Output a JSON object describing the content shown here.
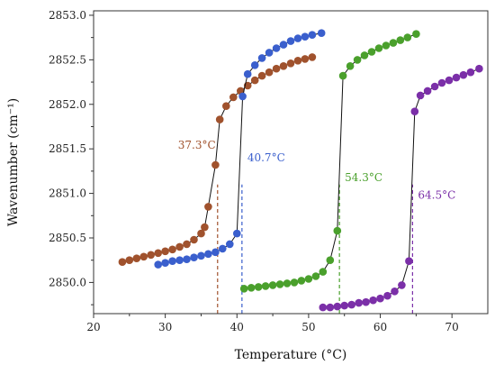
{
  "chart_data": {
    "type": "scatter",
    "xlabel": "Temperature (°C)",
    "ylabel": "Wavenumber (cm⁻¹)",
    "xlim": [
      20,
      75
    ],
    "ylim": [
      2849.65,
      2853.05
    ],
    "xticks": [
      20,
      30,
      40,
      50,
      60,
      70
    ],
    "yticks": [
      2850.0,
      2850.5,
      2851.0,
      2851.5,
      2852.0,
      2852.5,
      2853.0
    ],
    "grid": false,
    "legend": "none",
    "series": [
      {
        "color": "#a0522d",
        "points": [
          [
            24.0,
            2850.23
          ],
          [
            25.0,
            2850.25
          ],
          [
            26.0,
            2850.27
          ],
          [
            27.0,
            2850.29
          ],
          [
            28.0,
            2850.31
          ],
          [
            29.0,
            2850.33
          ],
          [
            30.0,
            2850.35
          ],
          [
            31.0,
            2850.37
          ],
          [
            32.0,
            2850.4
          ],
          [
            33.0,
            2850.43
          ],
          [
            34.0,
            2850.48
          ],
          [
            35.0,
            2850.55
          ],
          [
            35.5,
            2850.62
          ],
          [
            36.0,
            2850.85
          ],
          [
            37.0,
            2851.32
          ],
          [
            37.6,
            2851.83
          ],
          [
            38.5,
            2851.98
          ],
          [
            39.5,
            2852.08
          ],
          [
            40.5,
            2852.15
          ],
          [
            41.5,
            2852.21
          ],
          [
            42.5,
            2852.27
          ],
          [
            43.5,
            2852.32
          ],
          [
            44.5,
            2852.36
          ],
          [
            45.5,
            2852.4
          ],
          [
            46.5,
            2852.43
          ],
          [
            47.5,
            2852.46
          ],
          [
            48.5,
            2852.49
          ],
          [
            49.5,
            2852.51
          ],
          [
            50.5,
            2852.53
          ]
        ],
        "transition": {
          "x": 37.3,
          "label": "37.3°C"
        }
      },
      {
        "color": "#3a5fcd",
        "points": [
          [
            29.0,
            2850.2
          ],
          [
            30.0,
            2850.22
          ],
          [
            31.0,
            2850.24
          ],
          [
            32.0,
            2850.25
          ],
          [
            33.0,
            2850.26
          ],
          [
            34.0,
            2850.28
          ],
          [
            35.0,
            2850.3
          ],
          [
            36.0,
            2850.32
          ],
          [
            37.0,
            2850.34
          ],
          [
            38.0,
            2850.38
          ],
          [
            39.0,
            2850.43
          ],
          [
            40.0,
            2850.55
          ],
          [
            40.8,
            2852.09
          ],
          [
            41.5,
            2852.34
          ],
          [
            42.5,
            2852.44
          ],
          [
            43.5,
            2852.52
          ],
          [
            44.5,
            2852.58
          ],
          [
            45.5,
            2852.63
          ],
          [
            46.5,
            2852.67
          ],
          [
            47.5,
            2852.71
          ],
          [
            48.5,
            2852.74
          ],
          [
            49.5,
            2852.76
          ],
          [
            50.5,
            2852.78
          ],
          [
            51.8,
            2852.8
          ]
        ],
        "transition": {
          "x": 40.7,
          "label": "40.7°C"
        }
      },
      {
        "color": "#4aa02c",
        "points": [
          [
            41.0,
            2849.93
          ],
          [
            42.0,
            2849.94
          ],
          [
            43.0,
            2849.95
          ],
          [
            44.0,
            2849.96
          ],
          [
            45.0,
            2849.97
          ],
          [
            46.0,
            2849.98
          ],
          [
            47.0,
            2849.99
          ],
          [
            48.0,
            2850.0
          ],
          [
            49.0,
            2850.02
          ],
          [
            50.0,
            2850.04
          ],
          [
            51.0,
            2850.07
          ],
          [
            52.0,
            2850.12
          ],
          [
            53.0,
            2850.25
          ],
          [
            54.0,
            2850.58
          ],
          [
            54.8,
            2852.32
          ],
          [
            55.8,
            2852.43
          ],
          [
            56.8,
            2852.5
          ],
          [
            57.8,
            2852.55
          ],
          [
            58.8,
            2852.59
          ],
          [
            59.8,
            2852.63
          ],
          [
            60.8,
            2852.66
          ],
          [
            61.8,
            2852.69
          ],
          [
            62.8,
            2852.72
          ],
          [
            63.8,
            2852.75
          ],
          [
            65.0,
            2852.79
          ]
        ],
        "transition": {
          "x": 54.3,
          "label": "54.3°C"
        }
      },
      {
        "color": "#7b2fa8",
        "points": [
          [
            52.0,
            2849.72
          ],
          [
            53.0,
            2849.72
          ],
          [
            54.0,
            2849.73
          ],
          [
            55.0,
            2849.74
          ],
          [
            56.0,
            2849.75
          ],
          [
            57.0,
            2849.77
          ],
          [
            58.0,
            2849.78
          ],
          [
            59.0,
            2849.8
          ],
          [
            60.0,
            2849.82
          ],
          [
            61.0,
            2849.85
          ],
          [
            62.0,
            2849.9
          ],
          [
            63.0,
            2849.97
          ],
          [
            64.0,
            2850.24
          ],
          [
            64.8,
            2851.92
          ],
          [
            65.6,
            2852.1
          ],
          [
            66.6,
            2852.15
          ],
          [
            67.6,
            2852.2
          ],
          [
            68.6,
            2852.24
          ],
          [
            69.6,
            2852.27
          ],
          [
            70.6,
            2852.3
          ],
          [
            71.6,
            2852.33
          ],
          [
            72.6,
            2852.36
          ],
          [
            73.8,
            2852.4
          ]
        ],
        "transition": {
          "x": 64.5,
          "label": "64.5°C"
        }
      }
    ]
  }
}
